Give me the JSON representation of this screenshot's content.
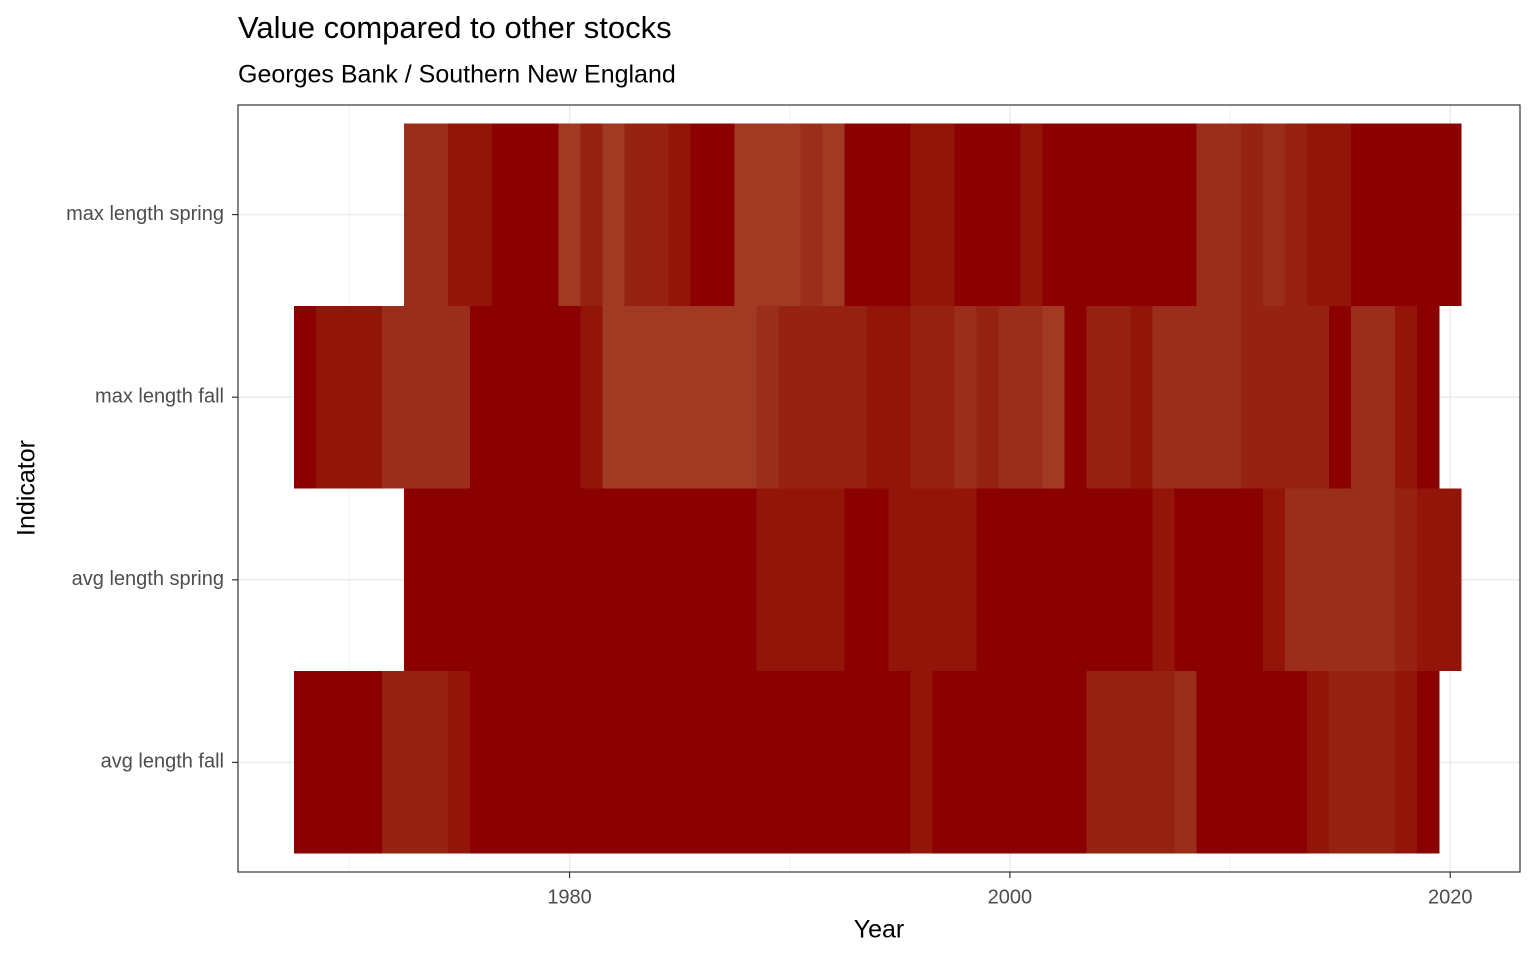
{
  "chart_data": {
    "type": "heatmap",
    "title": "Value compared to other stocks",
    "subtitle": "Georges Bank / Southern New England",
    "x_label": "Year",
    "y_label": "Indicator",
    "categories": [
      "avg length fall",
      "avg length spring",
      "max length fall",
      "max length spring"
    ],
    "xlim": [
      1964.94,
      2023.17
    ],
    "xticks": [
      1980,
      2000,
      2020
    ],
    "xminor": [
      1970,
      1990,
      2010
    ],
    "ylim": [
      0.4,
      4.6
    ],
    "grid": true,
    "tiles": [
      {
        "x": [
          1968,
          1969,
          1970,
          1971,
          1972,
          1973,
          1974,
          1975,
          1976,
          1977,
          1978,
          1979,
          1980,
          1981,
          1982,
          1983,
          1984,
          1985,
          1986,
          1987,
          1988,
          1989,
          1990,
          1991,
          1992,
          1993,
          1994,
          1995,
          1996,
          1997,
          1998,
          1999,
          2000,
          2001,
          2002,
          2003,
          2004,
          2005,
          2006,
          2007,
          2008,
          2009,
          2010,
          2011,
          2012,
          2013,
          2014,
          2015,
          2016,
          2017,
          2018,
          2019
        ],
        "colors": [
          "#8b0000",
          "#8b0000",
          "#8b0000",
          "#8b0000",
          "#962212",
          "#962212",
          "#962212",
          "#931509",
          "#8b0000",
          "#8b0000",
          "#8b0000",
          "#8b0000",
          "#8b0000",
          "#8b0000",
          "#8b0000",
          "#8b0000",
          "#8b0000",
          "#8b0000",
          "#8b0000",
          "#8b0000",
          "#8b0000",
          "#8b0000",
          "#8b0000",
          "#8b0000",
          "#8b0000",
          "#8b0000",
          "#8b0000",
          "#8b0000",
          "#931509",
          "#8b0000",
          "#8b0000",
          "#8b0000",
          "#8b0000",
          "#8b0000",
          "#8b0000",
          "#8b0000",
          "#962212",
          "#962212",
          "#962212",
          "#962212",
          "#9b2e1a",
          "#8b0000",
          "#8b0000",
          "#8b0000",
          "#8b0000",
          "#8b0000",
          "#931509",
          "#962212",
          "#962212",
          "#962212",
          "#931509",
          "#8b0000"
        ]
      },
      {
        "x": [
          1973,
          1974,
          1975,
          1976,
          1977,
          1978,
          1979,
          1980,
          1981,
          1982,
          1983,
          1984,
          1985,
          1986,
          1987,
          1988,
          1989,
          1990,
          1991,
          1992,
          1993,
          1994,
          1995,
          1996,
          1997,
          1998,
          1999,
          2000,
          2001,
          2002,
          2003,
          2004,
          2005,
          2006,
          2007,
          2008,
          2009,
          2010,
          2011,
          2012,
          2013,
          2014,
          2015,
          2016,
          2017,
          2018,
          2019,
          2020
        ],
        "colors": [
          "#8b0000",
          "#8b0000",
          "#8b0000",
          "#8b0000",
          "#8b0000",
          "#8b0000",
          "#8b0000",
          "#8b0000",
          "#8b0000",
          "#8b0000",
          "#8b0000",
          "#8b0000",
          "#8b0000",
          "#8b0000",
          "#8b0000",
          "#8b0000",
          "#931509",
          "#931509",
          "#931509",
          "#931509",
          "#8b0000",
          "#8b0000",
          "#931509",
          "#931509",
          "#931509",
          "#931509",
          "#8b0000",
          "#8b0000",
          "#8b0000",
          "#8b0000",
          "#8b0000",
          "#8b0000",
          "#8b0000",
          "#8b0000",
          "#931509",
          "#8b0000",
          "#8b0000",
          "#8b0000",
          "#8b0000",
          "#931509",
          "#9b2e1a",
          "#9b2e1a",
          "#9b2e1a",
          "#9b2e1a",
          "#9b2e1a",
          "#962212",
          "#931509",
          "#931509"
        ]
      },
      {
        "x": [
          1968,
          1969,
          1970,
          1971,
          1972,
          1973,
          1974,
          1975,
          1976,
          1977,
          1978,
          1979,
          1980,
          1981,
          1982,
          1983,
          1984,
          1985,
          1986,
          1987,
          1988,
          1989,
          1990,
          1991,
          1992,
          1993,
          1994,
          1995,
          1996,
          1997,
          1998,
          1999,
          2000,
          2001,
          2002,
          2003,
          2004,
          2005,
          2006,
          2007,
          2008,
          2009,
          2010,
          2011,
          2012,
          2013,
          2014,
          2015,
          2016,
          2017,
          2018,
          2019
        ],
        "colors": [
          "#8b0000",
          "#931509",
          "#931509",
          "#931509",
          "#9b2e1a",
          "#9b2e1a",
          "#9b2e1a",
          "#9b2e1a",
          "#8b0000",
          "#8b0000",
          "#8b0000",
          "#8b0000",
          "#8b0000",
          "#931509",
          "#a03a23",
          "#a03a23",
          "#a03a23",
          "#a03a23",
          "#a03a23",
          "#a03a23",
          "#a03a23",
          "#9b2e1a",
          "#962212",
          "#962212",
          "#962212",
          "#962212",
          "#931509",
          "#931509",
          "#962212",
          "#962212",
          "#9b2e1a",
          "#962212",
          "#9b2e1a",
          "#9b2e1a",
          "#a03a23",
          "#8b0000",
          "#962212",
          "#962212",
          "#931509",
          "#9b2e1a",
          "#9b2e1a",
          "#9b2e1a",
          "#9b2e1a",
          "#962212",
          "#962212",
          "#962212",
          "#962212",
          "#8b0000",
          "#9b2e1a",
          "#9b2e1a",
          "#931509",
          "#8b0000"
        ]
      },
      {
        "x": [
          1973,
          1974,
          1975,
          1976,
          1977,
          1978,
          1979,
          1980,
          1981,
          1982,
          1983,
          1984,
          1985,
          1986,
          1987,
          1988,
          1989,
          1990,
          1991,
          1992,
          1993,
          1994,
          1995,
          1996,
          1997,
          1998,
          1999,
          2000,
          2001,
          2002,
          2003,
          2004,
          2005,
          2006,
          2007,
          2008,
          2009,
          2010,
          2011,
          2012,
          2013,
          2014,
          2015,
          2016,
          2017,
          2018,
          2019,
          2020
        ],
        "colors": [
          "#9b2e1a",
          "#9b2e1a",
          "#931509",
          "#931509",
          "#8b0000",
          "#8b0000",
          "#8b0000",
          "#a03a23",
          "#962212",
          "#a03a23",
          "#962212",
          "#962212",
          "#931509",
          "#8b0000",
          "#8b0000",
          "#a03a23",
          "#a03a23",
          "#a03a23",
          "#9b2e1a",
          "#a03a23",
          "#8b0000",
          "#8b0000",
          "#8b0000",
          "#931509",
          "#931509",
          "#8b0000",
          "#8b0000",
          "#8b0000",
          "#931509",
          "#8b0000",
          "#8b0000",
          "#8b0000",
          "#8b0000",
          "#8b0000",
          "#8b0000",
          "#8b0000",
          "#9b2e1a",
          "#9b2e1a",
          "#962212",
          "#9b2e1a",
          "#962212",
          "#931509",
          "#931509",
          "#8b0000",
          "#8b0000",
          "#8b0000",
          "#8b0000",
          "#8b0000"
        ]
      }
    ]
  }
}
